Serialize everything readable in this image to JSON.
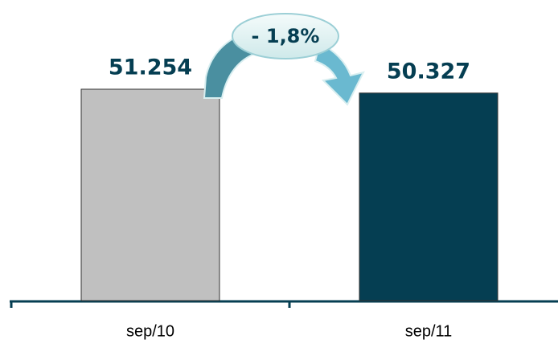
{
  "chart_data": {
    "type": "bar",
    "categories": [
      "sep/10",
      "sep/11"
    ],
    "values": [
      51254,
      50327
    ],
    "value_labels": [
      "51.254",
      "50.327"
    ],
    "colors": [
      "#c0c0c0",
      "#053e52"
    ],
    "annotation": "- 1,8%"
  }
}
